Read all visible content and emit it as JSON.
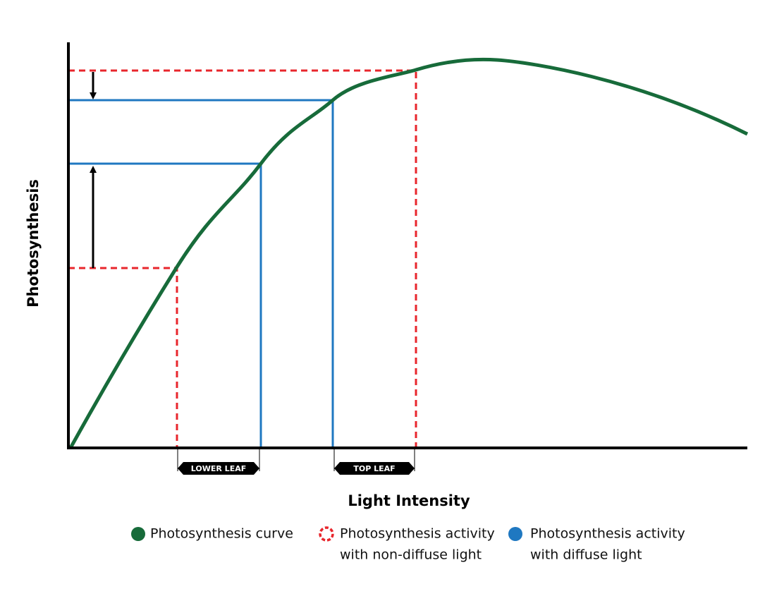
{
  "axes": {
    "x_label": "Light Intensity",
    "y_label": "Photosynthesis"
  },
  "leaf_labels": {
    "lower": "LOWER LEAF",
    "top": "TOP LEAF"
  },
  "legend": [
    {
      "lines": [
        "Photosynthesis curve"
      ]
    },
    {
      "lines": [
        "Photosynthesis activity",
        "with non-diffuse light"
      ]
    },
    {
      "lines": [
        "Photosynthesis activity",
        "with diffuse light"
      ]
    }
  ]
}
